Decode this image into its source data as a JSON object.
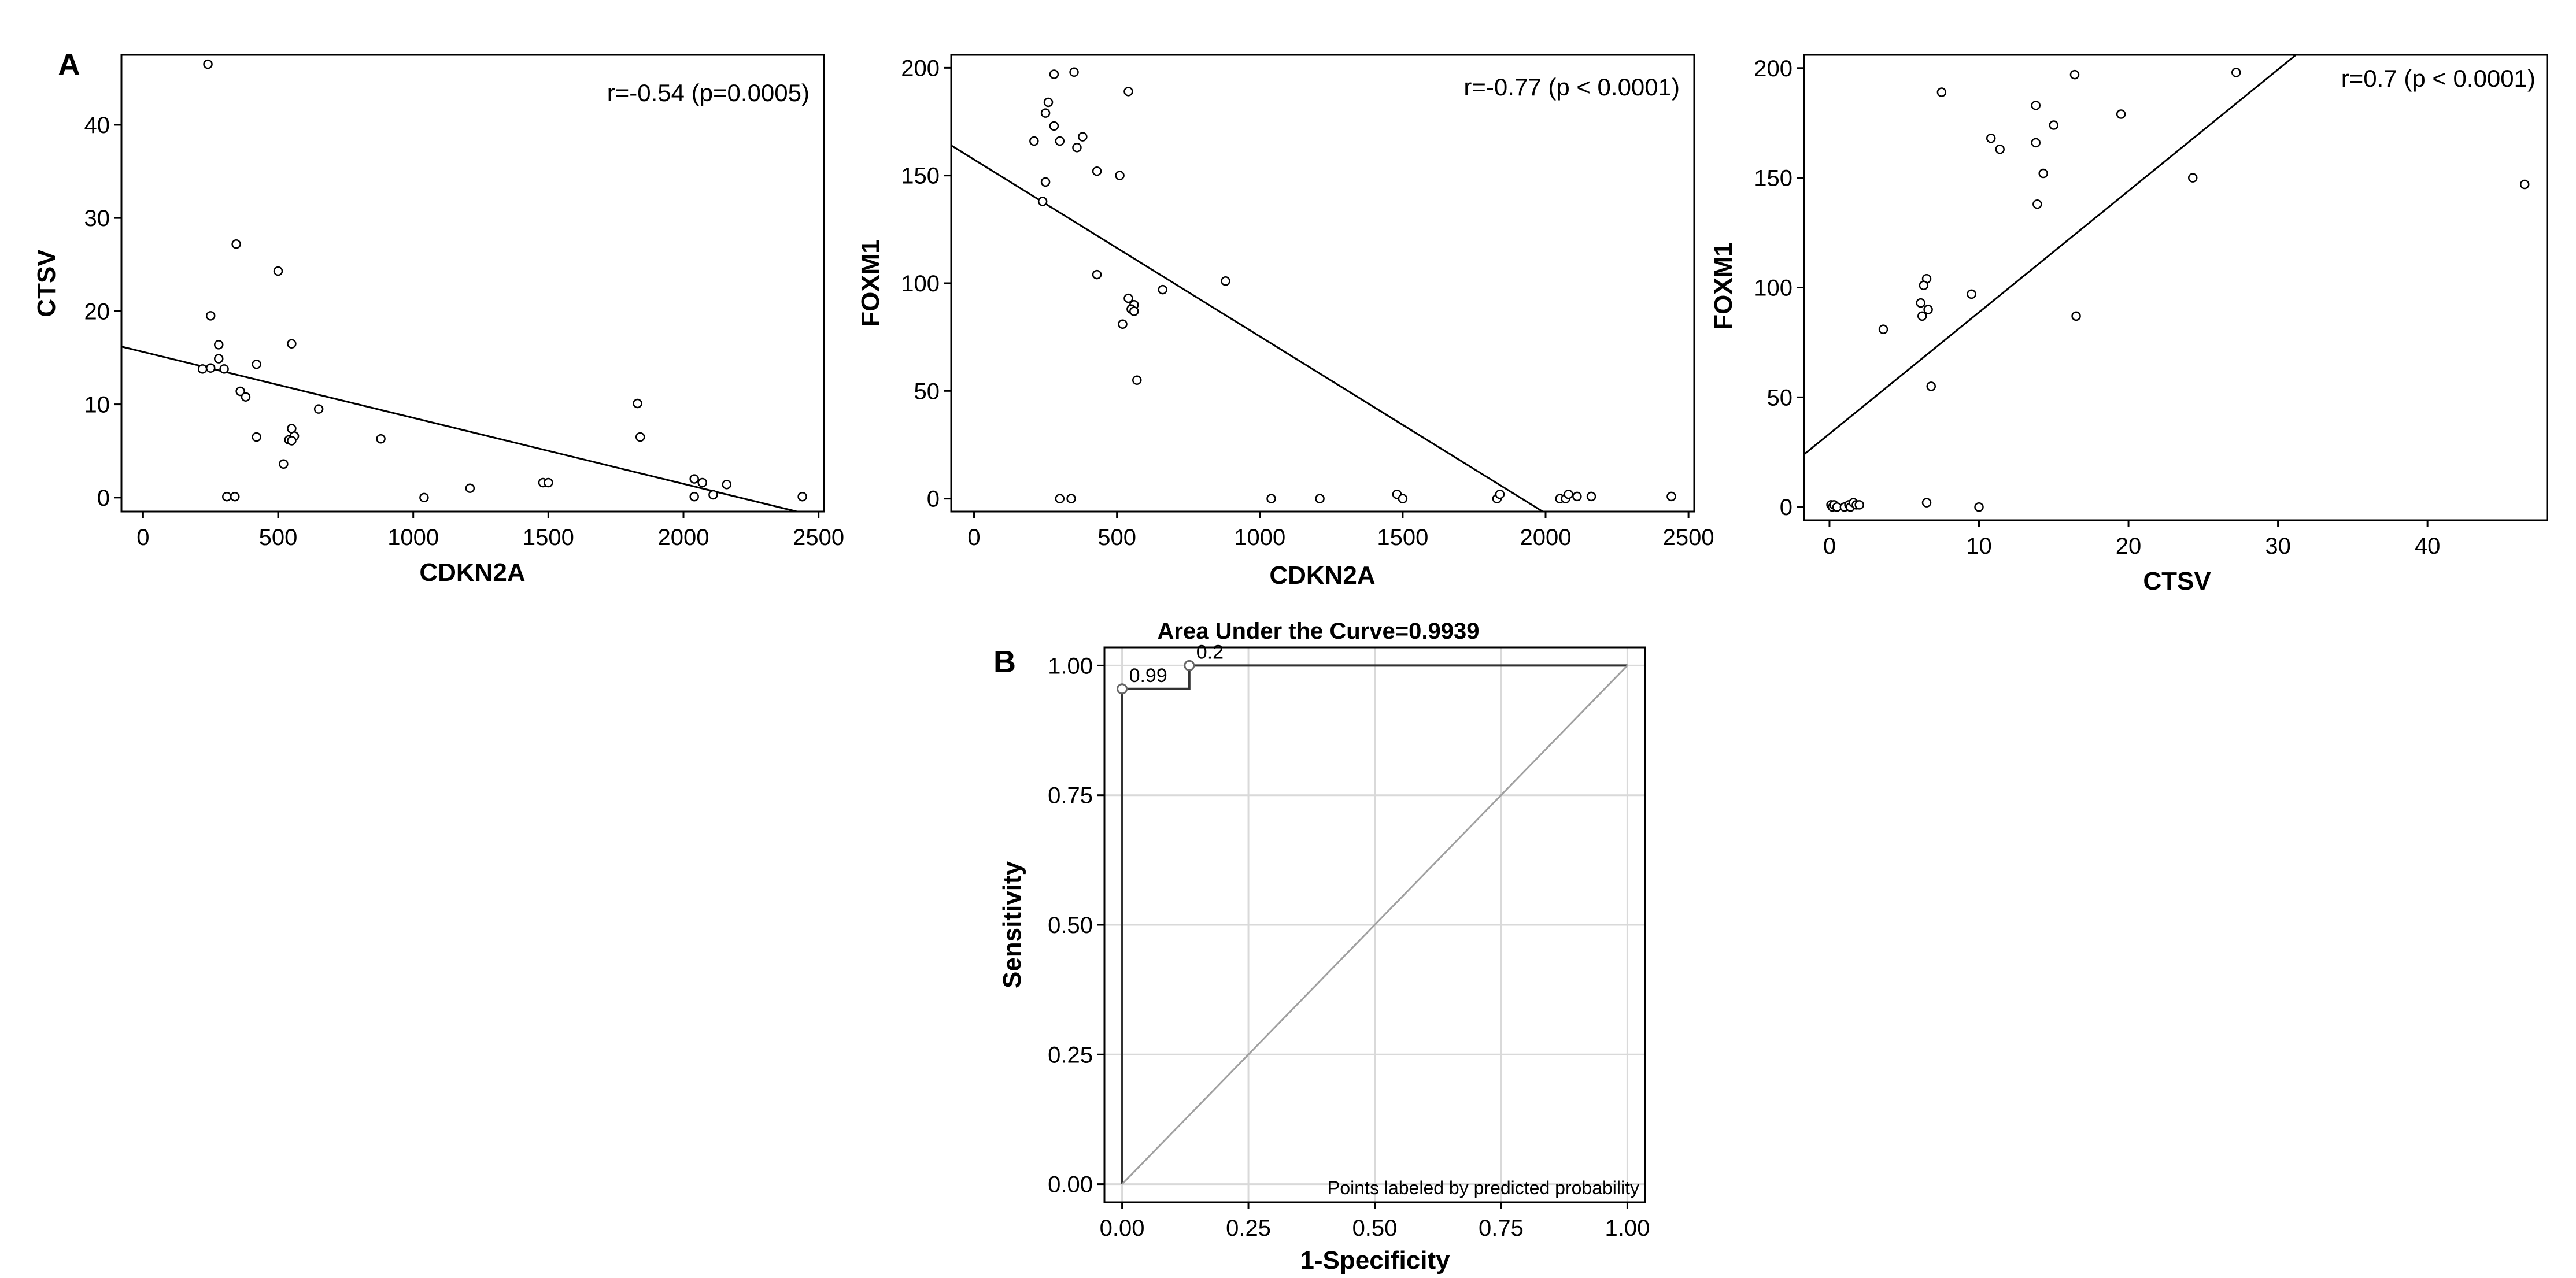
{
  "panel_labels": {
    "a": "A",
    "b": "B"
  },
  "colors": {
    "ink": "#000000",
    "grid": "#d9d9d9",
    "diagonal": "#a0a0a0",
    "roc_line": "#333333",
    "roc_point": "#666666"
  },
  "chart_data": [
    {
      "id": "scatter-cdkn2a-ctsv",
      "type": "scatter",
      "title": "",
      "xlabel": "CDKN2A",
      "ylabel": "CTSV",
      "xlim": [
        -80,
        2520
      ],
      "ylim": [
        -1.5,
        47.5
      ],
      "xticks": [
        0,
        500,
        1000,
        1500,
        2000,
        2500
      ],
      "yticks": [
        0,
        10,
        20,
        30,
        40
      ],
      "annotation": "r=-0.54 (p=0.0005)",
      "fit_line": {
        "x": [
          -80,
          2420
        ],
        "y": [
          16.2,
          -1.5
        ]
      },
      "points": [
        [
          240,
          46.5
        ],
        [
          345,
          27.2
        ],
        [
          500,
          24.3
        ],
        [
          250,
          19.5
        ],
        [
          550,
          16.5
        ],
        [
          280,
          16.4
        ],
        [
          280,
          14.9
        ],
        [
          420,
          14.3
        ],
        [
          220,
          13.8
        ],
        [
          250,
          13.9
        ],
        [
          300,
          13.8
        ],
        [
          360,
          11.4
        ],
        [
          380,
          10.8
        ],
        [
          650,
          9.5
        ],
        [
          550,
          7.4
        ],
        [
          560,
          6.6
        ],
        [
          420,
          6.5
        ],
        [
          880,
          6.3
        ],
        [
          540,
          6.2
        ],
        [
          550,
          6.1
        ],
        [
          520,
          3.6
        ],
        [
          310,
          0.1
        ],
        [
          340,
          0.1
        ],
        [
          1040,
          0.0
        ],
        [
          1210,
          1.0
        ],
        [
          1480,
          1.6
        ],
        [
          1500,
          1.6
        ],
        [
          1830,
          10.1
        ],
        [
          1840,
          6.5
        ],
        [
          2040,
          2.0
        ],
        [
          2070,
          1.6
        ],
        [
          2160,
          1.4
        ],
        [
          2040,
          0.1
        ],
        [
          2110,
          0.3
        ],
        [
          2440,
          0.1
        ]
      ]
    },
    {
      "id": "scatter-cdkn2a-foxm1",
      "type": "scatter",
      "title": "",
      "xlabel": "CDKN2A",
      "ylabel": "FOXM1",
      "xlim": [
        -80,
        2520
      ],
      "ylim": [
        -6,
        206
      ],
      "xticks": [
        0,
        500,
        1000,
        1500,
        2000,
        2500
      ],
      "yticks": [
        0,
        50,
        100,
        150,
        200
      ],
      "annotation": "r=-0.77 (p < 0.0001)",
      "fit_line": {
        "x": [
          -80,
          1990
        ],
        "y": [
          164,
          -6
        ]
      },
      "points": [
        [
          280,
          197
        ],
        [
          350,
          198
        ],
        [
          540,
          189
        ],
        [
          260,
          184
        ],
        [
          250,
          179
        ],
        [
          280,
          173
        ],
        [
          380,
          168
        ],
        [
          210,
          166
        ],
        [
          300,
          166
        ],
        [
          360,
          163
        ],
        [
          430,
          152
        ],
        [
          510,
          150
        ],
        [
          250,
          147
        ],
        [
          240,
          138
        ],
        [
          430,
          104
        ],
        [
          880,
          101
        ],
        [
          660,
          97
        ],
        [
          540,
          93
        ],
        [
          560,
          90
        ],
        [
          550,
          88
        ],
        [
          560,
          87
        ],
        [
          520,
          81
        ],
        [
          570,
          55
        ],
        [
          300,
          0
        ],
        [
          340,
          0
        ],
        [
          1040,
          0
        ],
        [
          1210,
          0
        ],
        [
          1480,
          2
        ],
        [
          1500,
          0
        ],
        [
          1830,
          0
        ],
        [
          1840,
          2
        ],
        [
          2050,
          0
        ],
        [
          2070,
          0
        ],
        [
          2080,
          2
        ],
        [
          2110,
          1
        ],
        [
          2160,
          1
        ],
        [
          2440,
          1
        ]
      ]
    },
    {
      "id": "scatter-ctsv-foxm1",
      "type": "scatter",
      "title": "",
      "xlabel": "CTSV",
      "ylabel": "FOXM1",
      "xlim": [
        -1.7,
        48
      ],
      "ylim": [
        -6,
        206
      ],
      "xticks": [
        0,
        10,
        20,
        30,
        40
      ],
      "yticks": [
        0,
        50,
        100,
        150,
        200
      ],
      "annotation": "r=0.7 (p < 0.0001)",
      "fit_line": {
        "x": [
          -1.7,
          31.2
        ],
        "y": [
          24,
          206
        ]
      },
      "points": [
        [
          27.2,
          198
        ],
        [
          16.4,
          197
        ],
        [
          7.5,
          189
        ],
        [
          13.8,
          183
        ],
        [
          19.5,
          179
        ],
        [
          15.0,
          174
        ],
        [
          10.8,
          168
        ],
        [
          13.8,
          166
        ],
        [
          11.4,
          163
        ],
        [
          14.3,
          152
        ],
        [
          24.3,
          150
        ],
        [
          46.5,
          147
        ],
        [
          13.9,
          138
        ],
        [
          6.5,
          104
        ],
        [
          6.3,
          101
        ],
        [
          9.5,
          97
        ],
        [
          6.1,
          93
        ],
        [
          6.6,
          90
        ],
        [
          6.2,
          87
        ],
        [
          16.5,
          87
        ],
        [
          3.6,
          81
        ],
        [
          6.8,
          55
        ],
        [
          0.1,
          1
        ],
        [
          0.2,
          0
        ],
        [
          0.3,
          1
        ],
        [
          0.5,
          0
        ],
        [
          1.0,
          0
        ],
        [
          1.3,
          1
        ],
        [
          1.4,
          0
        ],
        [
          1.6,
          2
        ],
        [
          1.8,
          1
        ],
        [
          2.0,
          1
        ],
        [
          6.5,
          2
        ],
        [
          10.0,
          0
        ]
      ]
    },
    {
      "id": "roc-curve",
      "type": "line",
      "title": "Area Under the Curve=0.9939",
      "xlabel": "1-Specificity",
      "ylabel": "Sensitivity",
      "xlim": [
        -0.035,
        1.035
      ],
      "ylim": [
        -0.035,
        1.035
      ],
      "xticks": [
        "0.00",
        "0.25",
        "0.50",
        "0.75",
        "1.00"
      ],
      "yticks": [
        "0.00",
        "0.25",
        "0.50",
        "0.75",
        "1.00"
      ],
      "grid": true,
      "series": [
        {
          "name": "ROC",
          "x": [
            0,
            0,
            0.133,
            0.133,
            1
          ],
          "y": [
            0,
            0.955,
            0.955,
            1,
            1
          ]
        },
        {
          "name": "Reference",
          "x": [
            0,
            1
          ],
          "y": [
            0,
            1
          ]
        }
      ],
      "labeled_points": [
        {
          "x": 0,
          "y": 0.955,
          "label": "0.99"
        },
        {
          "x": 0.133,
          "y": 1,
          "label": "0.2"
        }
      ],
      "footnote": "Points labeled by predicted probability"
    }
  ]
}
